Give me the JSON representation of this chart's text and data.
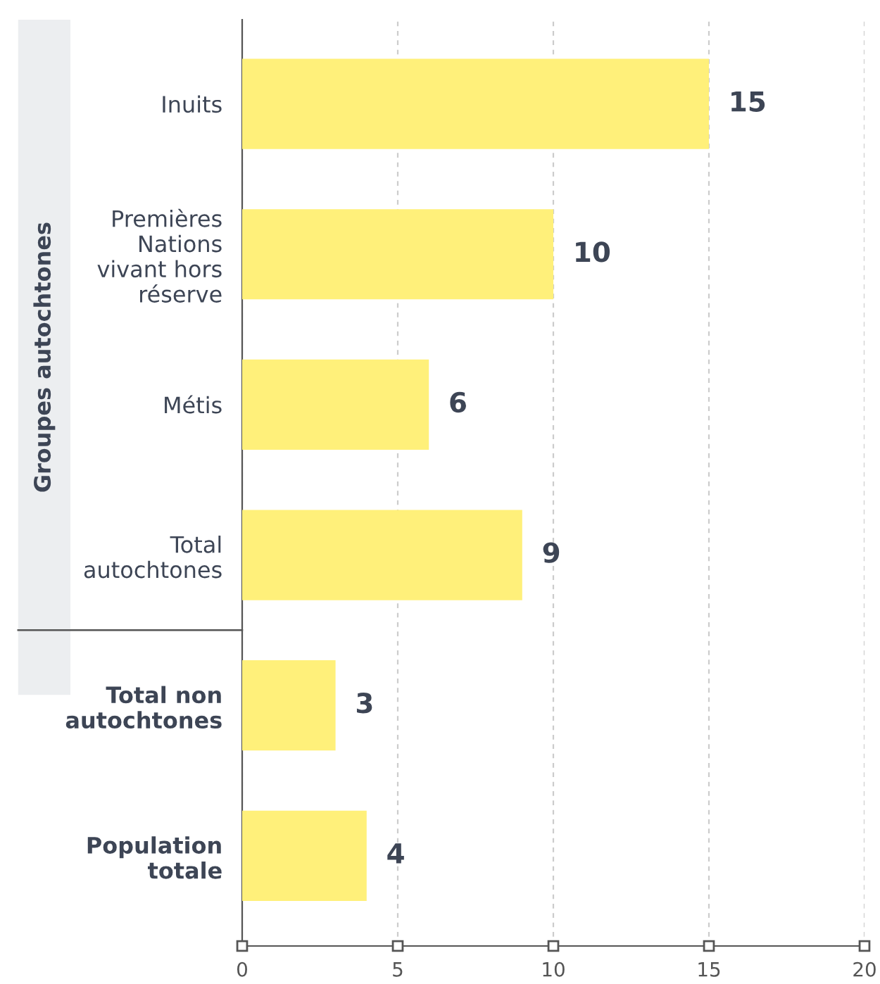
{
  "chart_data": {
    "type": "bar",
    "orientation": "horizontal",
    "categories": [
      "Inuits",
      "Premières\nNations\nvivant hors\nréserve",
      "Métis",
      "Total\nautochtones",
      "Total non\nautochtones",
      "Population\ntotale"
    ],
    "values": [
      15,
      10,
      6,
      9,
      3,
      4
    ],
    "color": "#fff07a",
    "xlim": [
      0,
      20
    ],
    "xticks": [
      0,
      5,
      10,
      15,
      20
    ],
    "grid": "x",
    "data_labels": true,
    "annotations": [
      "Groupes autochtones"
    ]
  }
}
